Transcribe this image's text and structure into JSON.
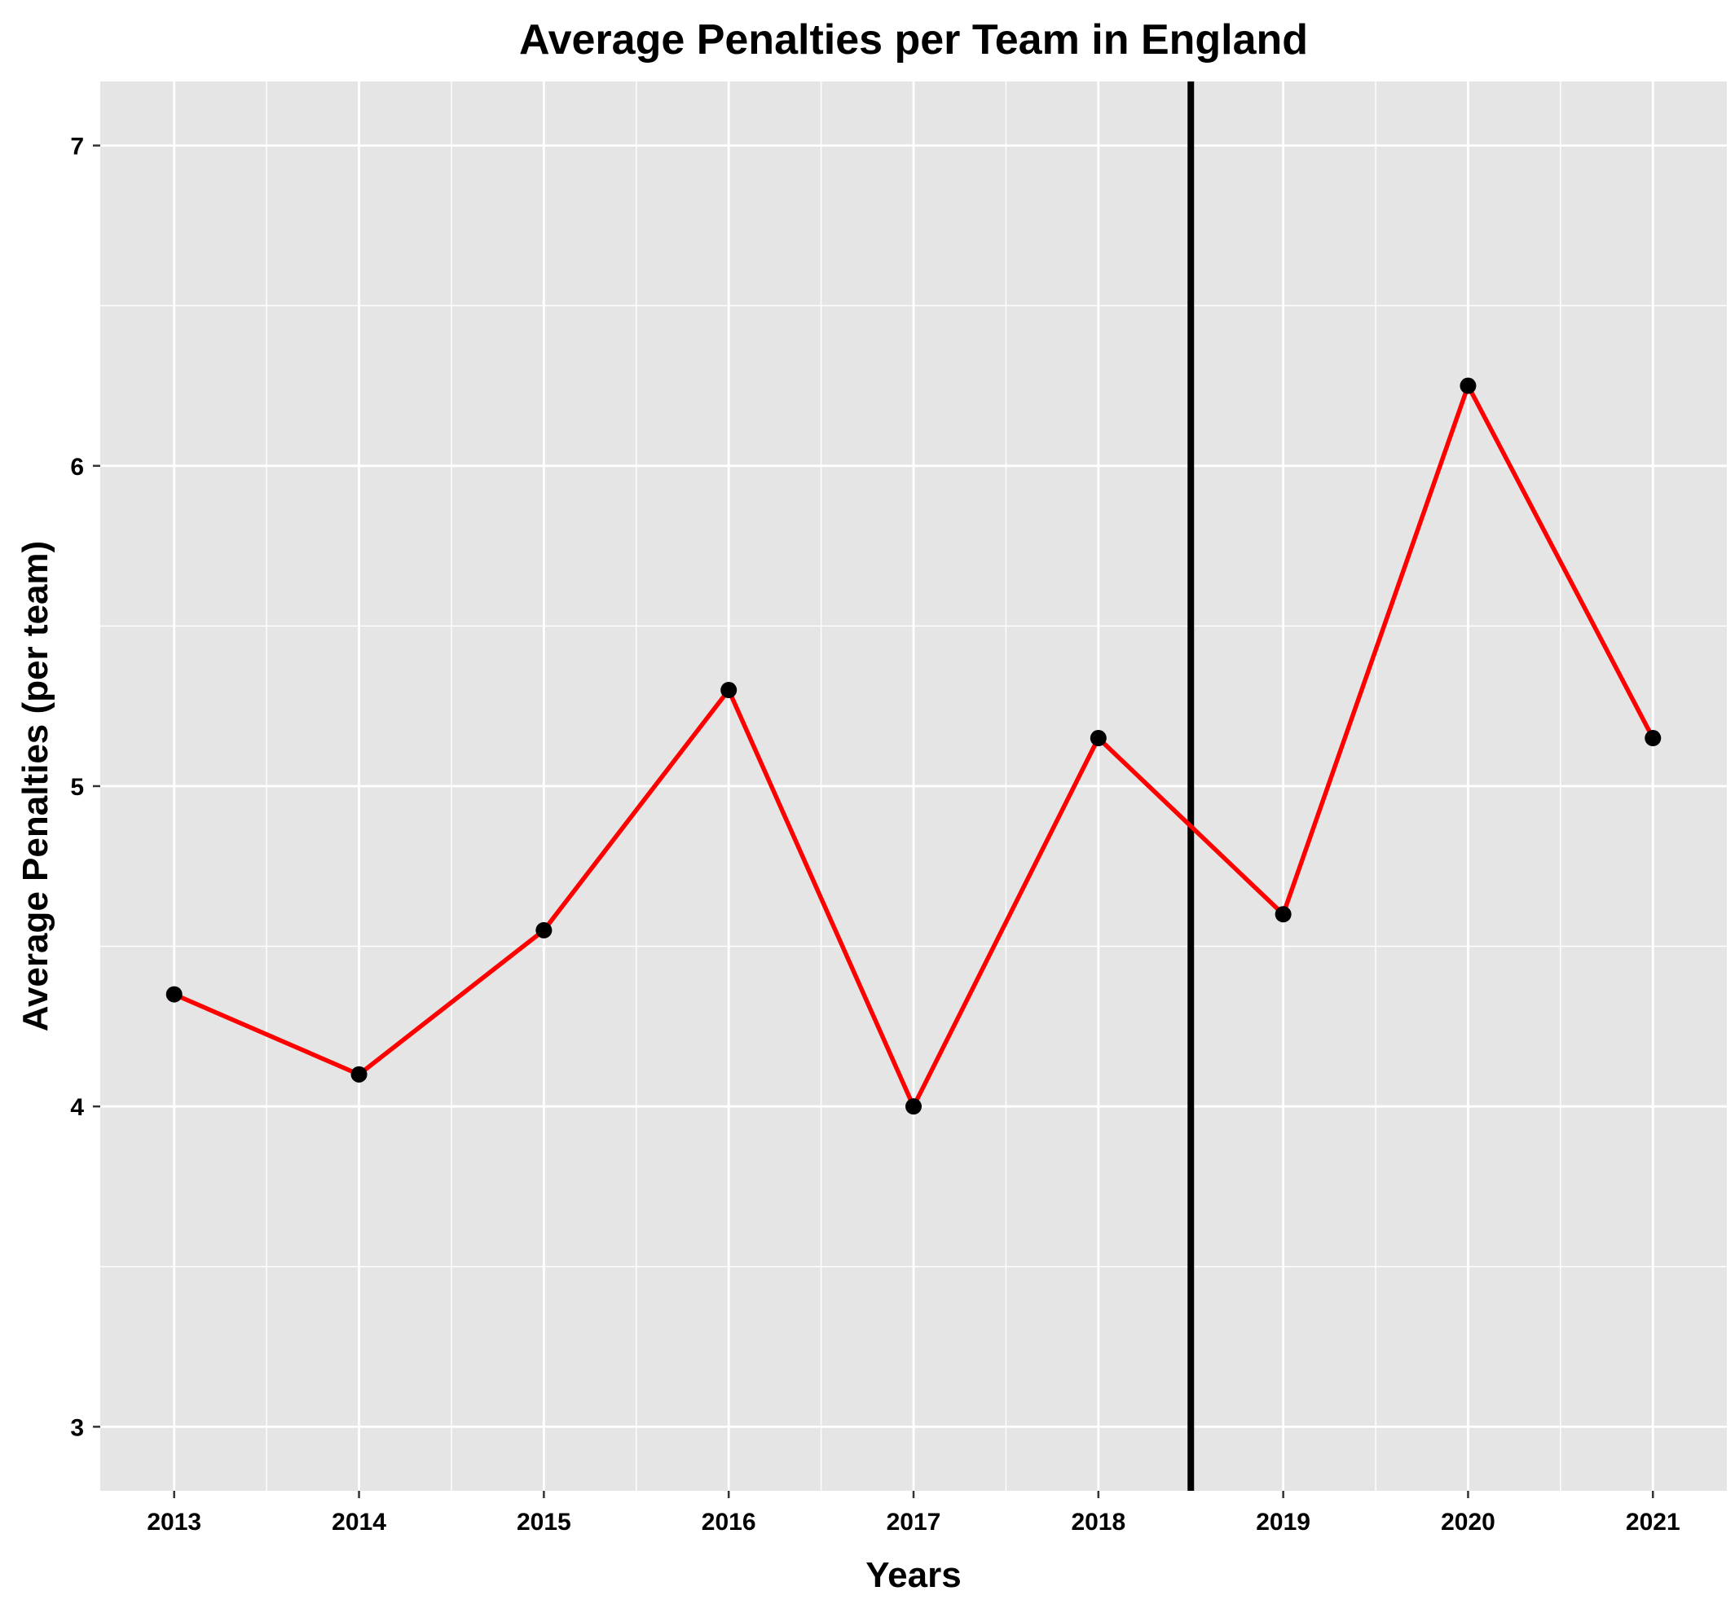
{
  "chart_data": {
    "type": "line",
    "title": "Average Penalties per Team in England",
    "xlabel": "Years",
    "ylabel": "Average Penalties (per team)",
    "x": [
      2013,
      2014,
      2015,
      2016,
      2017,
      2018,
      2019,
      2020,
      2021
    ],
    "series": [
      {
        "values": [
          4.35,
          4.1,
          4.55,
          5.3,
          4.0,
          5.15,
          4.6,
          6.25,
          5.15
        ]
      }
    ],
    "x_ticks": [
      "2013",
      "2014",
      "2015",
      "2016",
      "2017",
      "2018",
      "2019",
      "2020",
      "2021"
    ],
    "y_ticks": [
      "3",
      "4",
      "5",
      "6",
      "7"
    ],
    "xlim": [
      2012.6,
      2021.4
    ],
    "ylim": [
      2.8,
      7.2
    ],
    "reference_line_x": 2018.5,
    "grid": true,
    "legend": "none",
    "colors": {
      "panel": "#e5e5e5",
      "grid": "#ffffff",
      "line": "#ff0000",
      "points": "#000000",
      "reference_line": "#000000"
    }
  }
}
